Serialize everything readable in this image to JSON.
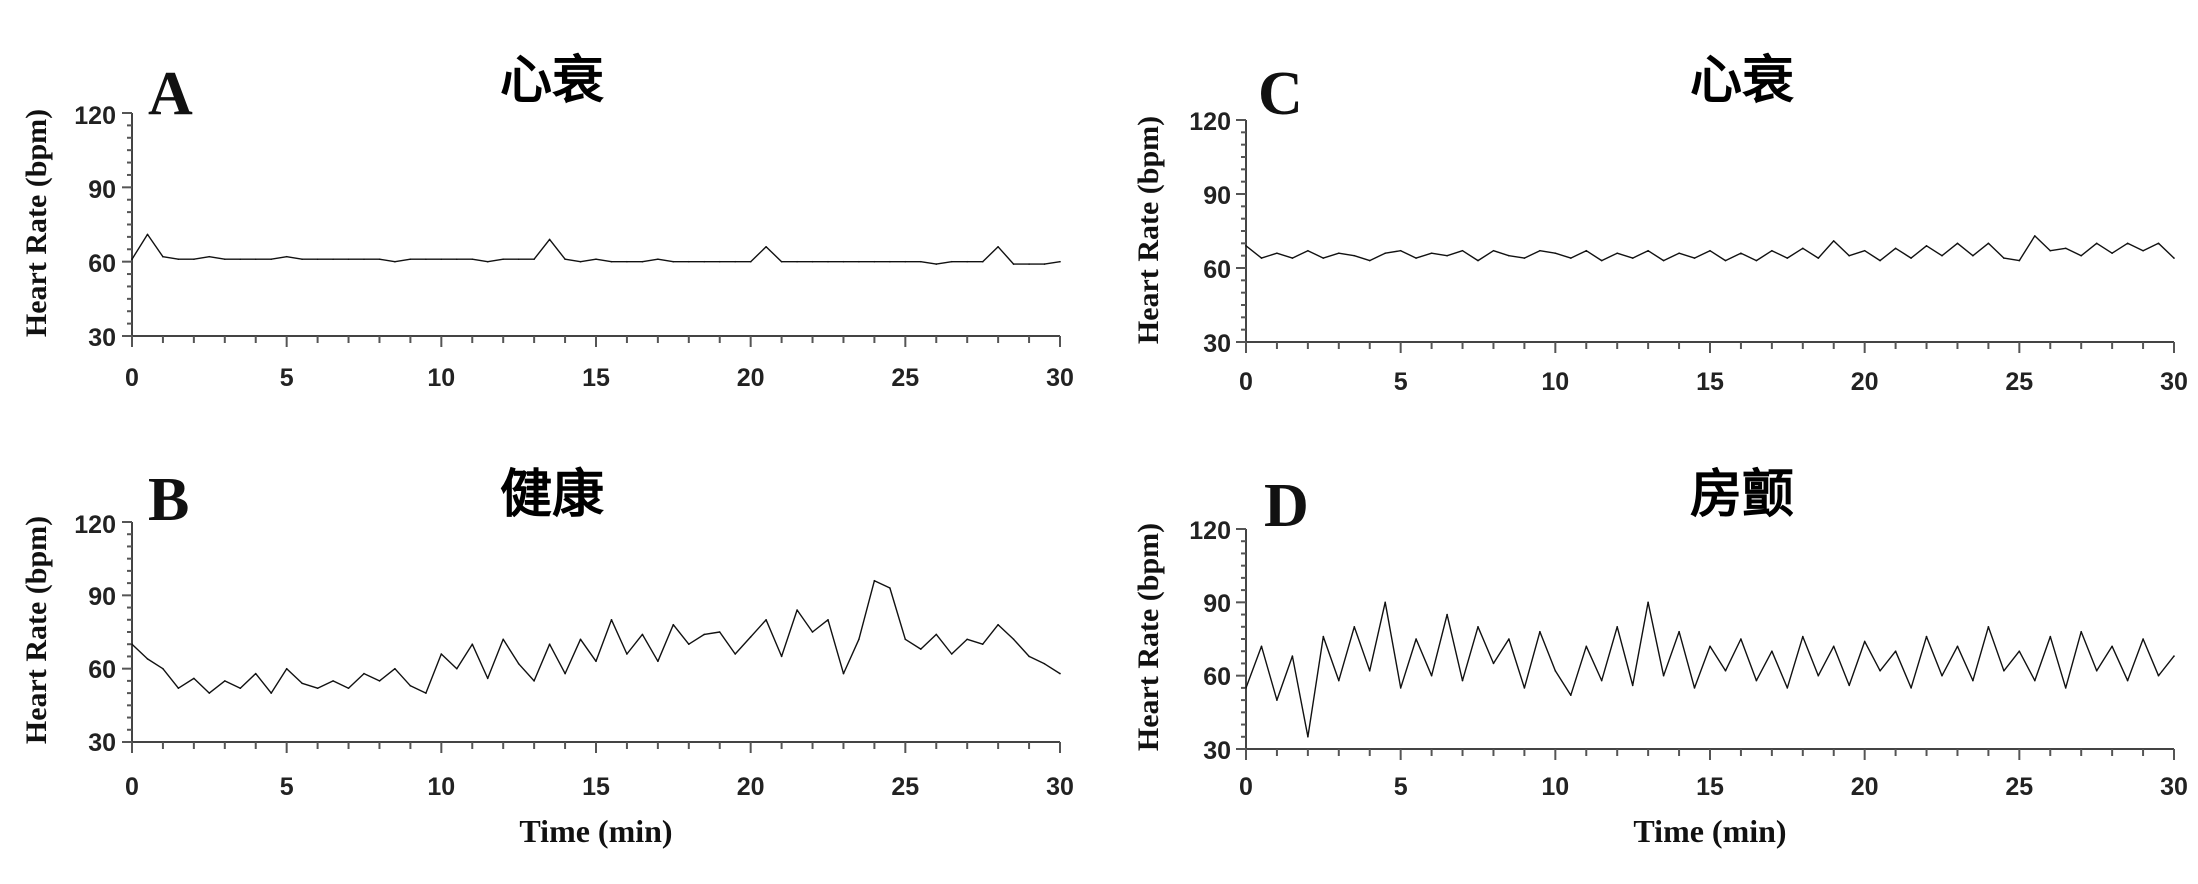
{
  "chart_data": [
    {
      "panel": "A",
      "title": "心衰",
      "type": "line",
      "xlabel": "",
      "ylabel": "Heart Rate (bpm)",
      "xlim": [
        0,
        30
      ],
      "ylim": [
        30,
        120
      ],
      "xticks": [
        0,
        5,
        10,
        15,
        20,
        25,
        30
      ],
      "yticks": [
        30,
        60,
        90,
        120
      ],
      "series": [
        {
          "x": [
            0,
            0.5,
            1,
            1.5,
            2,
            2.5,
            3,
            3.5,
            4,
            4.5,
            5,
            5.5,
            6,
            6.5,
            7,
            7.5,
            8,
            8.5,
            9,
            9.5,
            10,
            10.5,
            11,
            11.5,
            12,
            12.5,
            13,
            13.5,
            14,
            14.5,
            15,
            15.5,
            16,
            16.5,
            17,
            17.5,
            18,
            18.5,
            19,
            19.5,
            20,
            20.5,
            21,
            21.5,
            22,
            22.5,
            23,
            23.5,
            24,
            24.5,
            25,
            25.5,
            26,
            26.5,
            27,
            27.5,
            28,
            28.5,
            29,
            29.5,
            30
          ],
          "y": [
            61,
            71,
            62,
            61,
            61,
            62,
            61,
            61,
            61,
            61,
            62,
            61,
            61,
            61,
            61,
            61,
            61,
            60,
            61,
            61,
            61,
            61,
            61,
            60,
            61,
            61,
            61,
            69,
            61,
            60,
            61,
            60,
            60,
            60,
            61,
            60,
            60,
            60,
            60,
            60,
            60,
            66,
            60,
            60,
            60,
            60,
            60,
            60,
            60,
            60,
            60,
            60,
            59,
            60,
            60,
            60,
            66,
            59,
            59,
            59,
            60
          ]
        }
      ]
    },
    {
      "panel": "B",
      "title": "健康",
      "type": "line",
      "xlabel": "Time (min)",
      "ylabel": "Heart Rate (bpm)",
      "xlim": [
        0,
        30
      ],
      "ylim": [
        30,
        120
      ],
      "xticks": [
        0,
        5,
        10,
        15,
        20,
        25,
        30
      ],
      "yticks": [
        30,
        60,
        90,
        120
      ],
      "series": [
        {
          "x": [
            0,
            0.5,
            1,
            1.5,
            2,
            2.5,
            3,
            3.5,
            4,
            4.5,
            5,
            5.5,
            6,
            6.5,
            7,
            7.5,
            8,
            8.5,
            9,
            9.5,
            10,
            10.5,
            11,
            11.5,
            12,
            12.5,
            13,
            13.5,
            14,
            14.5,
            15,
            15.5,
            16,
            16.5,
            17,
            17.5,
            18,
            18.5,
            19,
            19.5,
            20,
            20.5,
            21,
            21.5,
            22,
            22.5,
            23,
            23.5,
            24,
            24.5,
            25,
            25.5,
            26,
            26.5,
            27,
            27.5,
            28,
            28.5,
            29,
            29.5,
            30
          ],
          "y": [
            70,
            64,
            60,
            52,
            56,
            50,
            55,
            52,
            58,
            50,
            60,
            54,
            52,
            55,
            52,
            58,
            55,
            60,
            53,
            50,
            66,
            60,
            70,
            56,
            72,
            62,
            55,
            70,
            58,
            72,
            63,
            80,
            66,
            74,
            63,
            78,
            70,
            74,
            75,
            66,
            73,
            80,
            65,
            84,
            75,
            80,
            58,
            72,
            96,
            93,
            72,
            68,
            74,
            66,
            72,
            70,
            78,
            72,
            65,
            62,
            58
          ]
        }
      ]
    },
    {
      "panel": "C",
      "title": "心衰",
      "type": "line",
      "xlabel": "",
      "ylabel": "Heart Rate (bpm)",
      "xlim": [
        0,
        30
      ],
      "ylim": [
        30,
        120
      ],
      "xticks": [
        0,
        5,
        10,
        15,
        20,
        25,
        30
      ],
      "yticks": [
        30,
        60,
        90,
        120
      ],
      "series": [
        {
          "x": [
            0,
            0.5,
            1,
            1.5,
            2,
            2.5,
            3,
            3.5,
            4,
            4.5,
            5,
            5.5,
            6,
            6.5,
            7,
            7.5,
            8,
            8.5,
            9,
            9.5,
            10,
            10.5,
            11,
            11.5,
            12,
            12.5,
            13,
            13.5,
            14,
            14.5,
            15,
            15.5,
            16,
            16.5,
            17,
            17.5,
            18,
            18.5,
            19,
            19.5,
            20,
            20.5,
            21,
            21.5,
            22,
            22.5,
            23,
            23.5,
            24,
            24.5,
            25,
            25.5,
            26,
            26.5,
            27,
            27.5,
            28,
            28.5,
            29,
            29.5,
            30
          ],
          "y": [
            69,
            64,
            66,
            64,
            67,
            64,
            66,
            65,
            63,
            66,
            67,
            64,
            66,
            65,
            67,
            63,
            67,
            65,
            64,
            67,
            66,
            64,
            67,
            63,
            66,
            64,
            67,
            63,
            66,
            64,
            67,
            63,
            66,
            63,
            67,
            64,
            68,
            64,
            71,
            65,
            67,
            63,
            68,
            64,
            69,
            65,
            70,
            65,
            70,
            64,
            63,
            73,
            67,
            68,
            65,
            70,
            66,
            70,
            67,
            70,
            64
          ]
        }
      ]
    },
    {
      "panel": "D",
      "title": "房颤",
      "type": "line",
      "xlabel": "Time (min)",
      "ylabel": "Heart Rate (bpm)",
      "xlim": [
        0,
        30
      ],
      "ylim": [
        30,
        120
      ],
      "xticks": [
        0,
        5,
        10,
        15,
        20,
        25,
        30
      ],
      "yticks": [
        30,
        60,
        90,
        120
      ],
      "series": [
        {
          "x": [
            0,
            0.5,
            1,
            1.5,
            2,
            2.5,
            3,
            3.5,
            4,
            4.5,
            5,
            5.5,
            6,
            6.5,
            7,
            7.5,
            8,
            8.5,
            9,
            9.5,
            10,
            10.5,
            11,
            11.5,
            12,
            12.5,
            13,
            13.5,
            14,
            14.5,
            15,
            15.5,
            16,
            16.5,
            17,
            17.5,
            18,
            18.5,
            19,
            19.5,
            20,
            20.5,
            21,
            21.5,
            22,
            22.5,
            23,
            23.5,
            24,
            24.5,
            25,
            25.5,
            26,
            26.5,
            27,
            27.5,
            28,
            28.5,
            29,
            29.5,
            30
          ],
          "y": [
            55,
            72,
            50,
            68,
            35,
            76,
            58,
            80,
            62,
            90,
            55,
            75,
            60,
            85,
            58,
            80,
            65,
            75,
            55,
            78,
            62,
            52,
            72,
            58,
            80,
            56,
            90,
            60,
            78,
            55,
            72,
            62,
            75,
            58,
            70,
            55,
            76,
            60,
            72,
            56,
            74,
            62,
            70,
            55,
            76,
            60,
            72,
            58,
            80,
            62,
            70,
            58,
            76,
            55,
            78,
            62,
            72,
            58,
            75,
            60,
            68
          ]
        }
      ]
    }
  ],
  "panels": [
    {
      "letter": "A",
      "title": "心衰",
      "ylabel": "Heart Rate (bpm)",
      "xlabel": "",
      "yticks": [
        "120",
        "90",
        "60",
        "30"
      ],
      "xticks": [
        "0",
        "5",
        "10",
        "15",
        "20",
        "25",
        "30"
      ]
    },
    {
      "letter": "B",
      "title": "健康",
      "ylabel": "Heart Rate (bpm)",
      "xlabel": "Time (min)",
      "yticks": [
        "120",
        "90",
        "60",
        "30"
      ],
      "xticks": [
        "0",
        "5",
        "10",
        "15",
        "20",
        "25",
        "30"
      ]
    },
    {
      "letter": "C",
      "title": "心衰",
      "ylabel": "Heart Rate (bpm)",
      "xlabel": "",
      "yticks": [
        "120",
        "90",
        "60",
        "30"
      ],
      "xticks": [
        "0",
        "5",
        "10",
        "15",
        "20",
        "25",
        "30"
      ]
    },
    {
      "letter": "D",
      "title": "房颤",
      "ylabel": "Heart Rate (bpm)",
      "xlabel": "Time (min)",
      "yticks": [
        "120",
        "90",
        "60",
        "30"
      ],
      "xticks": [
        "0",
        "5",
        "10",
        "15",
        "20",
        "25",
        "30"
      ]
    }
  ]
}
